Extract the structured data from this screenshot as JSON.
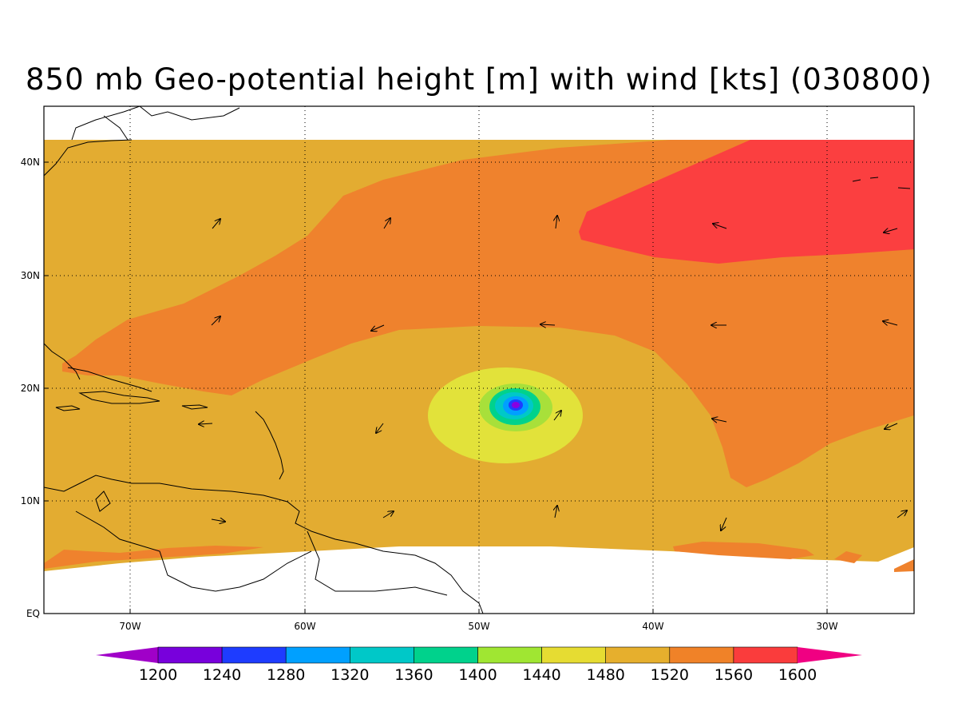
{
  "title": "850 mb Geo-potential height [m] with wind [kts] (030800)",
  "map": {
    "lon_ticks": [
      "70W",
      "60W",
      "50W",
      "40W",
      "30W"
    ],
    "lat_ticks": [
      "40N",
      "30N",
      "20N",
      "10N",
      "EQ"
    ],
    "colors": {
      "c1440": "#a8e03a",
      "c1480": "#e2e23a",
      "c1520": "#e3ac31",
      "c1560": "#ef822d",
      "c1600": "#fb3f40",
      "center1": "#00c8c8",
      "center2": "#00a0ff",
      "center3": "#1e3cff",
      "center4": "#8800e0"
    }
  },
  "colorbar": {
    "labels": [
      "1200",
      "1240",
      "1280",
      "1320",
      "1360",
      "1400",
      "1440",
      "1480",
      "1520",
      "1560",
      "1600"
    ],
    "colors": [
      "#a000c8",
      "#7800dc",
      "#1e3cff",
      "#00a0ff",
      "#00c8c8",
      "#00d28c",
      "#a0e632",
      "#e6dc32",
      "#e6af2d",
      "#f08228",
      "#fa3c3c",
      "#f00082"
    ]
  }
}
